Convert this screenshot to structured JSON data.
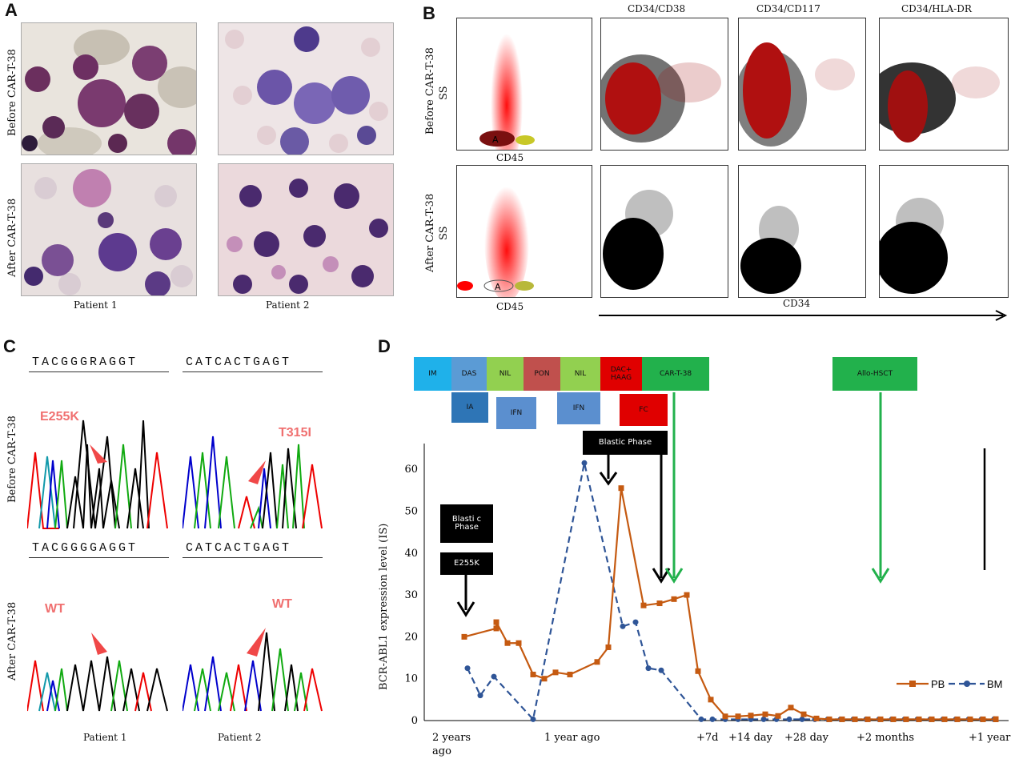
{
  "panels": {
    "a": "A",
    "b": "B",
    "c": "C",
    "d": "D"
  },
  "panel_a": {
    "row_labels": [
      "Before CAR-T-38",
      "After CAR-T-38"
    ],
    "col_labels": [
      "Patient 1",
      "Patient 2"
    ]
  },
  "panel_b": {
    "col_titles": [
      "CD34/CD38",
      "CD34/CD117",
      "CD34/HLA-DR"
    ],
    "row_labels": [
      "Before CAR-T-38",
      "After CAR-T-38"
    ],
    "ss_label": "SS",
    "cd45_label": "CD45",
    "gate_label": "A",
    "cd34_label": "CD34"
  },
  "panel_c": {
    "row_labels": [
      "Before CAR-T-38",
      "After CAR-T-38"
    ],
    "col_labels": [
      "Patient 1",
      "Patient 2"
    ],
    "seq_before_p1": "TACGGGRAGGT",
    "seq_before_p2": "CATCACTGAGT",
    "seq_after_p1": "TACGGGGAGGT",
    "seq_after_p2": "CATCACTGAGT",
    "mut_before_p1": "E255K",
    "mut_before_p2": "T315I",
    "mut_after_p1": "WT",
    "mut_after_p2": "WT"
  },
  "panel_d": {
    "timeline_top": [
      "IM",
      "DAS",
      "NIL",
      "PON",
      "NIL",
      "DAC+ HAAG",
      "CAR-T-38",
      "Allo-HSCT"
    ],
    "timeline_bottom": [
      "IA",
      "IFN",
      "IFN",
      "FC"
    ],
    "callouts": [
      "Blastic Phase",
      "Blasti c Phase",
      "E255K"
    ],
    "colors": {
      "pb": "#c55a11",
      "bm": "#2f5597",
      "green": "#22b14c"
    }
  },
  "chart_data": {
    "type": "line",
    "ylabel": "BCR-ABL1 expression level (IS)",
    "xlabel": "",
    "ylim": [
      0,
      65
    ],
    "yticks": [
      0,
      10,
      20,
      30,
      40,
      50,
      60
    ],
    "xtick_labels": [
      "2 years ago",
      "1 year ago",
      "+7d",
      "+14 day",
      "+28 day",
      "+2 months",
      "+1 year"
    ],
    "series": [
      {
        "name": "PB",
        "marker": "square",
        "dashed": false,
        "x": [
          0,
          1,
          2,
          3,
          4,
          5,
          6,
          7,
          8,
          9,
          10,
          11,
          12,
          13,
          14,
          15,
          16,
          17,
          18,
          19,
          20,
          21,
          22,
          23,
          24,
          25,
          26,
          27,
          28,
          29,
          30,
          31,
          32,
          33,
          34,
          35,
          36,
          37,
          38,
          39,
          40,
          41,
          42,
          43,
          44,
          45,
          46
        ],
        "values": [
          20,
          22,
          23.5,
          18.5,
          18.5,
          11,
          10,
          11.5,
          11,
          14,
          17.5,
          55.5,
          27.5,
          28,
          29,
          30,
          11.8,
          5,
          1,
          1,
          1.2,
          1.5,
          1.1,
          3.1,
          1.5,
          0.5,
          0.3,
          0.3,
          0.3,
          0.3,
          0.3,
          0.3,
          0.3,
          0.3,
          0.3,
          0.3,
          0.3,
          0.3,
          0.3,
          0.3,
          0.3,
          0.3,
          0.3,
          0.3,
          0.3,
          0.3,
          0.3
        ]
      },
      {
        "name": "BM",
        "marker": "circle",
        "dashed": true,
        "x": [
          0,
          1,
          2,
          3,
          4,
          5,
          6,
          7,
          8,
          9,
          10,
          11,
          12,
          13,
          14,
          15,
          16,
          17,
          18,
          19,
          20,
          21,
          22,
          23,
          24,
          25,
          26,
          27,
          28,
          29,
          30,
          31,
          32,
          33,
          34,
          35,
          36,
          37,
          38,
          39,
          40
        ],
        "values": [
          12.5,
          6,
          10.5,
          0.3,
          61.5,
          22.5,
          23.5,
          12.5,
          12,
          0.3,
          0.3,
          0.3,
          0.3,
          0.3,
          0.3,
          0.3,
          0.3,
          0.3,
          0.3,
          0.3,
          0.3,
          0.3,
          0.3,
          0.3,
          0.3,
          0.3,
          0.3,
          0.3,
          0.3,
          0.3,
          0.3,
          0.3,
          0.3,
          0.3,
          0.3,
          0.3,
          0.3,
          0.3,
          0.3,
          0.3,
          0.3
        ]
      }
    ],
    "legend": "bottom-right"
  }
}
